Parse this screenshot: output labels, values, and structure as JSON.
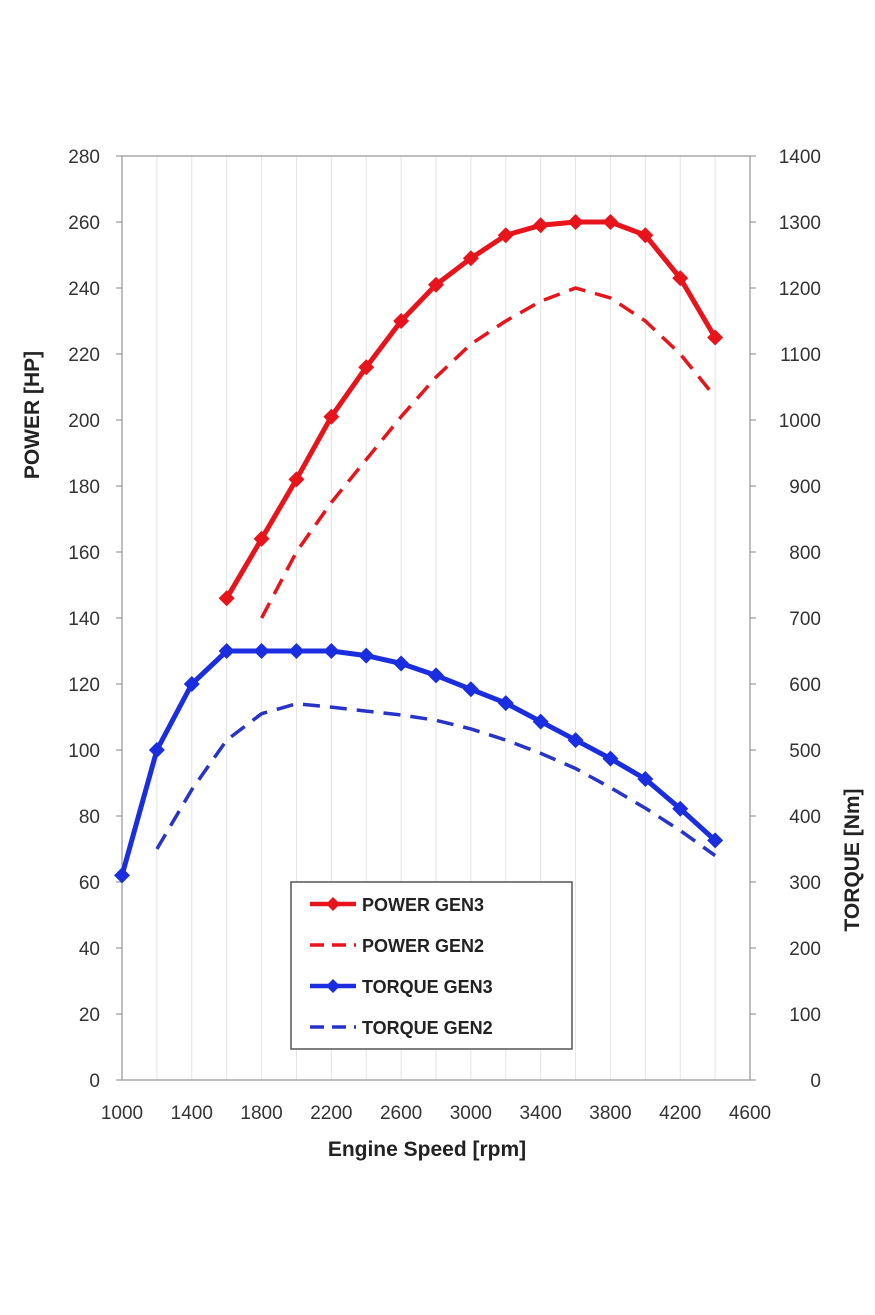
{
  "chart_data": {
    "type": "line",
    "xlabel": "Engine Speed [rpm]",
    "ylabel_left": "POWER  [HP]",
    "ylabel_right": "TORQUE [Nm]",
    "xlim": [
      1000,
      4600
    ],
    "ylim_left": [
      0,
      280
    ],
    "ylim_right": [
      0,
      1400
    ],
    "x_ticks": [
      1000,
      1400,
      1800,
      2200,
      2600,
      3000,
      3400,
      3800,
      4200,
      4600
    ],
    "y_ticks_left": [
      0,
      20,
      40,
      60,
      80,
      100,
      120,
      140,
      160,
      180,
      200,
      220,
      240,
      260,
      280
    ],
    "y_ticks_right": [
      0,
      100,
      200,
      300,
      400,
      500,
      600,
      700,
      800,
      900,
      1000,
      1100,
      1200,
      1300,
      1400
    ],
    "grid": "vertical",
    "legend_position": "bottom-center",
    "series": [
      {
        "name": "POWER GEN3",
        "axis": "left",
        "color": "#e8141c",
        "style": "solid",
        "markers": true,
        "x": [
          1600,
          1800,
          2000,
          2200,
          2400,
          2600,
          2800,
          3000,
          3200,
          3400,
          3600,
          3800,
          4000,
          4200,
          4400
        ],
        "values": [
          146,
          164,
          182,
          201,
          216,
          230,
          241,
          249,
          256,
          259,
          260,
          260,
          256,
          243,
          225
        ]
      },
      {
        "name": "POWER GEN2",
        "axis": "left",
        "color": "#e8141c",
        "style": "dashed",
        "markers": false,
        "x": [
          1800,
          2000,
          2200,
          2400,
          2600,
          2800,
          3000,
          3200,
          3400,
          3600,
          3800,
          4000,
          4200,
          4400
        ],
        "values": [
          140,
          160,
          175,
          188,
          201,
          213,
          223,
          230,
          236,
          240,
          237,
          230,
          220,
          207
        ]
      },
      {
        "name": "TORQUE GEN3",
        "axis": "right",
        "color": "#1a2ee0",
        "style": "solid",
        "markers": true,
        "x": [
          1000,
          1200,
          1400,
          1600,
          1800,
          2000,
          2200,
          2400,
          2600,
          2800,
          3000,
          3200,
          3400,
          3600,
          3800,
          4000,
          4200,
          4400
        ],
        "values": [
          310,
          500,
          600,
          650,
          650,
          650,
          650,
          643,
          631,
          613,
          592,
          571,
          543,
          515,
          487,
          456,
          411,
          363
        ]
      },
      {
        "name": "TORQUE GEN2",
        "axis": "right",
        "color": "#2833c8",
        "style": "dashed",
        "markers": false,
        "x": [
          1200,
          1400,
          1600,
          1800,
          2000,
          2200,
          2400,
          2600,
          2800,
          3000,
          3200,
          3400,
          3600,
          3800,
          4000,
          4200,
          4400
        ],
        "values": [
          350,
          440,
          515,
          555,
          570,
          565,
          559,
          553,
          545,
          532,
          515,
          495,
          472,
          443,
          412,
          378,
          340
        ]
      }
    ]
  }
}
